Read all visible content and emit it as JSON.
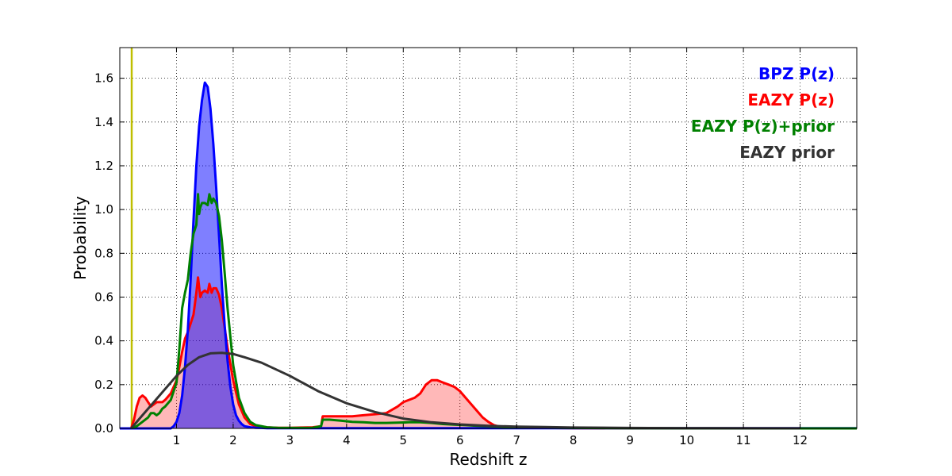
{
  "chart_data": {
    "type": "area",
    "xlabel": "Redshift z",
    "ylabel": "Probability",
    "xlim": [
      0.0,
      13.0
    ],
    "ylim": [
      0.0,
      1.74
    ],
    "x_ticks": [
      1,
      2,
      3,
      4,
      5,
      6,
      7,
      8,
      9,
      10,
      11,
      12
    ],
    "y_ticks": [
      0.0,
      0.2,
      0.4,
      0.6,
      0.8,
      1.0,
      1.2,
      1.4,
      1.6
    ],
    "y_tick_labels": [
      "0.0",
      "0.2",
      "0.4",
      "0.6",
      "0.8",
      "1.0",
      "1.2",
      "1.4",
      "1.6"
    ],
    "grid": true,
    "legend_position": "top-right",
    "vertical_marker": {
      "x": 0.21,
      "color": "#bfbf00"
    },
    "series": [
      {
        "name": "BPZ P(z)",
        "color": "#0000ff",
        "fill": "#0000ff",
        "fill_opacity": 0.5,
        "x": [
          0,
          0.9,
          0.95,
          1.0,
          1.05,
          1.1,
          1.15,
          1.2,
          1.25,
          1.3,
          1.35,
          1.4,
          1.45,
          1.5,
          1.55,
          1.6,
          1.65,
          1.7,
          1.75,
          1.8,
          1.85,
          1.9,
          1.95,
          2.0,
          2.05,
          2.1,
          2.15,
          2.2,
          2.3,
          2.4,
          2.5,
          2.6,
          13.0
        ],
        "y": [
          0,
          0,
          0.01,
          0.03,
          0.07,
          0.15,
          0.28,
          0.45,
          0.68,
          0.95,
          1.2,
          1.38,
          1.5,
          1.58,
          1.56,
          1.46,
          1.3,
          1.1,
          0.88,
          0.66,
          0.47,
          0.31,
          0.19,
          0.11,
          0.06,
          0.035,
          0.02,
          0.01,
          0.005,
          0.003,
          0.002,
          0.001,
          0.001
        ]
      },
      {
        "name": "EAZY P(z)",
        "color": "#ff0000",
        "fill": "#ff0000",
        "fill_opacity": 0.28,
        "x": [
          0.2,
          0.25,
          0.3,
          0.35,
          0.4,
          0.45,
          0.5,
          0.55,
          0.6,
          0.65,
          0.7,
          0.75,
          0.8,
          0.9,
          1.0,
          1.05,
          1.1,
          1.15,
          1.2,
          1.3,
          1.35,
          1.38,
          1.42,
          1.45,
          1.5,
          1.55,
          1.58,
          1.62,
          1.65,
          1.7,
          1.75,
          1.8,
          1.85,
          1.9,
          2.0,
          2.1,
          2.2,
          2.3,
          2.4,
          2.6,
          2.8,
          3.0,
          3.2,
          3.4,
          3.55,
          3.58,
          3.7,
          3.9,
          4.1,
          4.3,
          4.5,
          4.7,
          4.9,
          5.0,
          5.1,
          5.2,
          5.3,
          5.4,
          5.5,
          5.6,
          5.7,
          5.8,
          5.9,
          6.0,
          6.1,
          6.2,
          6.3,
          6.4,
          6.5,
          6.6,
          6.7,
          6.8,
          7.0,
          7.5,
          8.0,
          9.0,
          10.0,
          11.0,
          12.0,
          13.0
        ],
        "y": [
          0.0,
          0.04,
          0.1,
          0.14,
          0.15,
          0.14,
          0.12,
          0.1,
          0.11,
          0.12,
          0.12,
          0.12,
          0.13,
          0.16,
          0.22,
          0.28,
          0.35,
          0.41,
          0.44,
          0.52,
          0.62,
          0.69,
          0.6,
          0.62,
          0.63,
          0.62,
          0.66,
          0.62,
          0.64,
          0.64,
          0.61,
          0.55,
          0.46,
          0.37,
          0.22,
          0.11,
          0.05,
          0.02,
          0.01,
          0.005,
          0.003,
          0.003,
          0.004,
          0.005,
          0.01,
          0.055,
          0.055,
          0.055,
          0.055,
          0.06,
          0.065,
          0.07,
          0.1,
          0.12,
          0.13,
          0.14,
          0.16,
          0.2,
          0.22,
          0.22,
          0.21,
          0.2,
          0.19,
          0.17,
          0.14,
          0.11,
          0.08,
          0.05,
          0.03,
          0.015,
          0.008,
          0.005,
          0.003,
          0.002,
          0.001,
          0.0005,
          0.0003,
          0.0002,
          0.0001,
          0.0
        ]
      },
      {
        "name": "EAZY P(z)+prior",
        "color": "#008000",
        "fill": "none",
        "fill_opacity": 0,
        "x": [
          0.2,
          0.3,
          0.4,
          0.5,
          0.55,
          0.6,
          0.65,
          0.7,
          0.75,
          0.8,
          0.9,
          1.0,
          1.05,
          1.1,
          1.15,
          1.2,
          1.25,
          1.3,
          1.35,
          1.38,
          1.4,
          1.42,
          1.45,
          1.5,
          1.55,
          1.58,
          1.62,
          1.65,
          1.7,
          1.75,
          1.8,
          1.85,
          1.9,
          2.0,
          2.1,
          2.2,
          2.3,
          2.4,
          2.6,
          2.8,
          3.0,
          3.2,
          3.4,
          3.55,
          3.58,
          3.7,
          3.9,
          4.1,
          4.3,
          4.5,
          4.7,
          4.9,
          5.1,
          5.3,
          5.5,
          5.7,
          5.9,
          6.1,
          6.3,
          6.5,
          6.7,
          7.0,
          8.0,
          9.0,
          10.0,
          13.0
        ],
        "y": [
          0.0,
          0.01,
          0.03,
          0.05,
          0.07,
          0.07,
          0.06,
          0.07,
          0.09,
          0.1,
          0.13,
          0.21,
          0.36,
          0.55,
          0.62,
          0.68,
          0.8,
          0.89,
          0.93,
          1.07,
          0.98,
          1.01,
          1.03,
          1.03,
          1.02,
          1.07,
          1.03,
          1.05,
          1.03,
          0.97,
          0.86,
          0.71,
          0.55,
          0.29,
          0.14,
          0.07,
          0.03,
          0.015,
          0.005,
          0.002,
          0.002,
          0.002,
          0.003,
          0.01,
          0.04,
          0.04,
          0.035,
          0.03,
          0.028,
          0.025,
          0.025,
          0.026,
          0.028,
          0.028,
          0.025,
          0.02,
          0.017,
          0.015,
          0.012,
          0.01,
          0.008,
          0.005,
          0.002,
          0.001,
          0.0005,
          0.0
        ]
      },
      {
        "name": "EAZY prior",
        "color": "#333333",
        "fill": "none",
        "fill_opacity": 0,
        "x": [
          0.2,
          0.4,
          0.6,
          0.8,
          1.0,
          1.2,
          1.4,
          1.6,
          1.8,
          2.0,
          2.2,
          2.5,
          3.0,
          3.5,
          4.0,
          4.5,
          5.0,
          5.5,
          6.0,
          6.5,
          7.0,
          7.5,
          8.0,
          9.0,
          10.0,
          11.0,
          12.0
        ],
        "y": [
          0.0,
          0.06,
          0.12,
          0.18,
          0.24,
          0.29,
          0.325,
          0.343,
          0.345,
          0.34,
          0.325,
          0.3,
          0.24,
          0.17,
          0.115,
          0.075,
          0.045,
          0.028,
          0.018,
          0.012,
          0.008,
          0.006,
          0.004,
          0.002,
          0.001,
          0.0005,
          0.0002
        ]
      }
    ]
  }
}
